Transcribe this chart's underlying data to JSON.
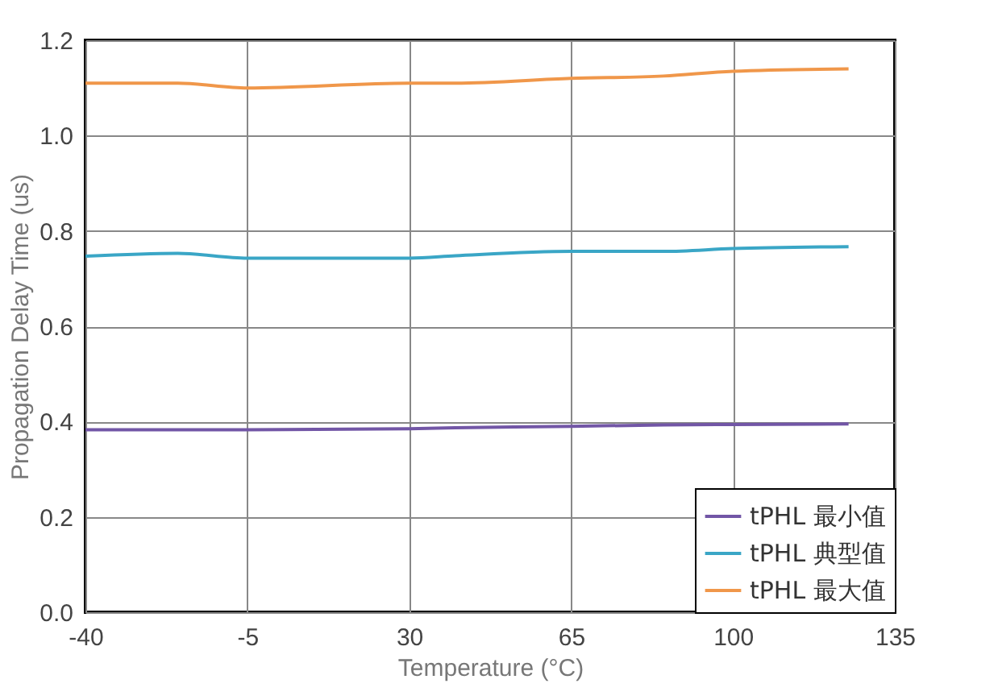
{
  "chart_data": {
    "type": "line",
    "xlabel": "Temperature (°C)",
    "ylabel": "Propagation Delay Time (us)",
    "x": [
      -40,
      -20,
      -5,
      30,
      40,
      65,
      85,
      100,
      125
    ],
    "series": [
      {
        "name": "tPHL 最小值",
        "color": "#7256a6",
        "values": [
          0.383,
          0.383,
          0.383,
          0.385,
          0.387,
          0.39,
          0.393,
          0.394,
          0.395
        ]
      },
      {
        "name": "tPHL 典型值",
        "color": "#3aa6c6",
        "values": [
          0.747,
          0.753,
          0.743,
          0.743,
          0.748,
          0.757,
          0.757,
          0.763,
          0.767
        ]
      },
      {
        "name": "tPHL 最大值",
        "color": "#f0974a",
        "values": [
          1.11,
          1.11,
          1.1,
          1.11,
          1.11,
          1.12,
          1.125,
          1.135,
          1.14
        ]
      }
    ],
    "xlim": [
      -40,
      135
    ],
    "xticks": [
      -40,
      -5,
      30,
      65,
      100,
      135
    ],
    "ylim": [
      0,
      1.2
    ],
    "yticks": [
      {
        "value": 0,
        "label": "0.0"
      },
      0.2,
      0.4,
      0.6,
      0.8,
      {
        "value": 1,
        "label": "1.0"
      },
      1.2
    ],
    "grid": true,
    "legend": "bottom right",
    "marker": "none",
    "line_style": "solid"
  }
}
